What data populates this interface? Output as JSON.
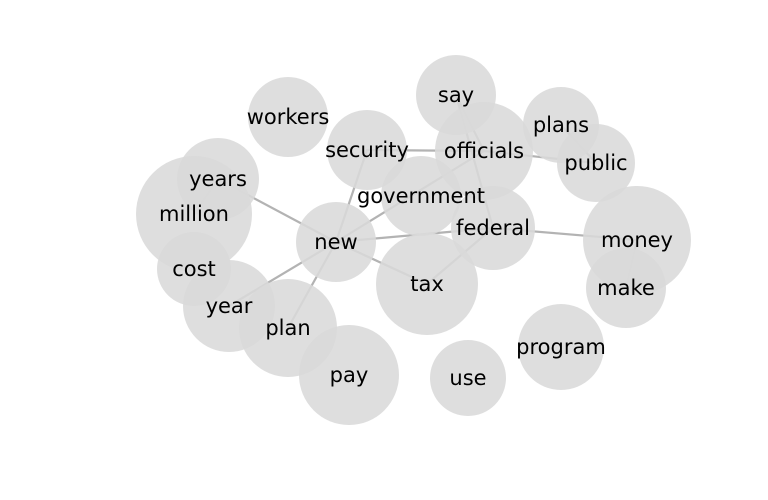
{
  "graph": {
    "nodes": [
      {
        "id": "workers",
        "label": "workers"
      },
      {
        "id": "say",
        "label": "say"
      },
      {
        "id": "plans",
        "label": "plans"
      },
      {
        "id": "security",
        "label": "security"
      },
      {
        "id": "officials",
        "label": "officials"
      },
      {
        "id": "public",
        "label": "public"
      },
      {
        "id": "years",
        "label": "years"
      },
      {
        "id": "million",
        "label": "million"
      },
      {
        "id": "government",
        "label": "government"
      },
      {
        "id": "federal",
        "label": "federal"
      },
      {
        "id": "new",
        "label": "new"
      },
      {
        "id": "money",
        "label": "money"
      },
      {
        "id": "cost",
        "label": "cost"
      },
      {
        "id": "tax",
        "label": "tax"
      },
      {
        "id": "make",
        "label": "make"
      },
      {
        "id": "year",
        "label": "year"
      },
      {
        "id": "plan",
        "label": "plan"
      },
      {
        "id": "program",
        "label": "program"
      },
      {
        "id": "pay",
        "label": "pay"
      },
      {
        "id": "use",
        "label": "use"
      }
    ],
    "edges": [
      [
        "say",
        "officials"
      ],
      [
        "say",
        "federal"
      ],
      [
        "security",
        "officials"
      ],
      [
        "security",
        "new"
      ],
      [
        "officials",
        "public"
      ],
      [
        "officials",
        "new"
      ],
      [
        "plans",
        "public"
      ],
      [
        "years",
        "million"
      ],
      [
        "years",
        "new"
      ],
      [
        "new",
        "federal"
      ],
      [
        "new",
        "tax"
      ],
      [
        "new",
        "year"
      ],
      [
        "new",
        "plan"
      ],
      [
        "federal",
        "money"
      ],
      [
        "federal",
        "tax"
      ],
      [
        "money",
        "make"
      ]
    ]
  }
}
